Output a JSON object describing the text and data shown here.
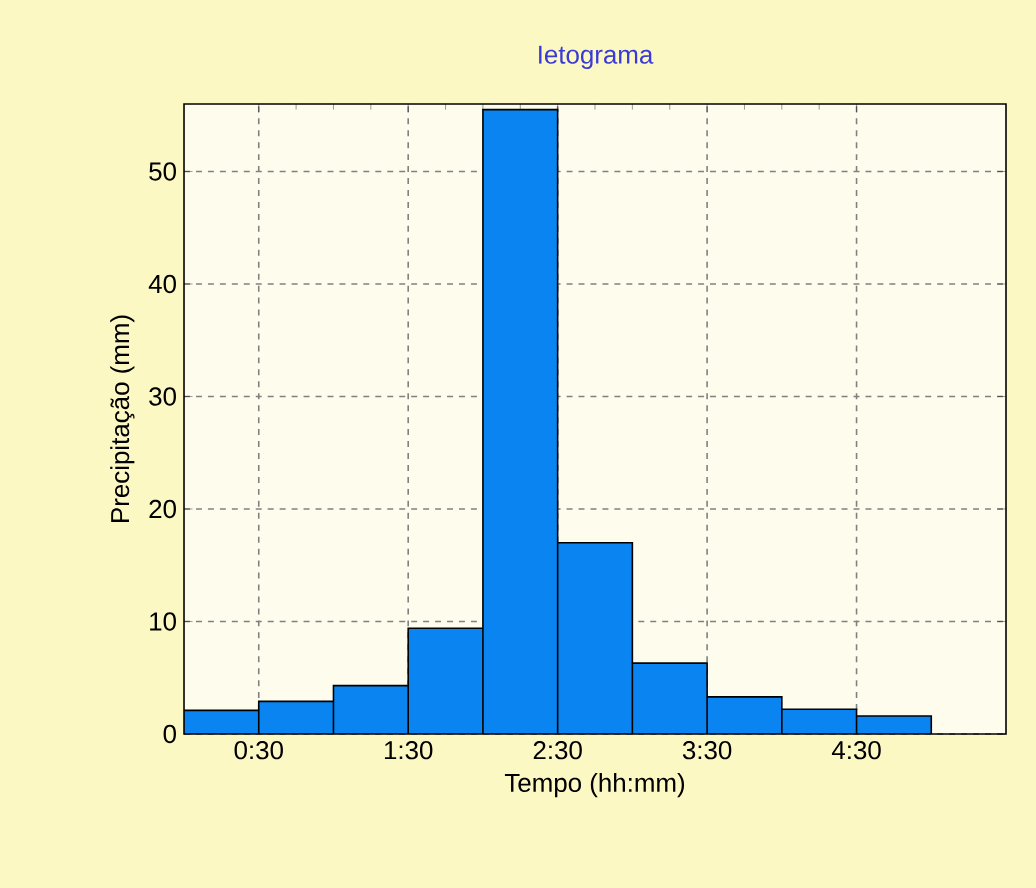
{
  "chart_data": {
    "type": "histogram",
    "title": "Ietograma",
    "xlabel": "Tempo (hh:mm)",
    "ylabel": "Precipitação (mm)",
    "bins": [
      0,
      0.5,
      1,
      1.5,
      2,
      2.5,
      3,
      3.5,
      4,
      4.5,
      5
    ],
    "values": [
      2.1,
      2.9,
      4.3,
      9.4,
      55.5,
      17.0,
      6.3,
      3.3,
      2.2,
      1.6
    ],
    "color": "#0a84f0",
    "xlim": [
      0,
      5.5
    ],
    "ylim": [
      0,
      56
    ],
    "xticks": [
      {
        "value": 0.5,
        "label": "0:30"
      },
      {
        "value": 1.5,
        "label": "1:30"
      },
      {
        "value": 2.5,
        "label": "2:30"
      },
      {
        "value": 3.5,
        "label": "3:30"
      },
      {
        "value": 4.5,
        "label": "4:30"
      }
    ],
    "yticks": [
      0,
      10,
      20,
      30,
      40,
      50
    ],
    "grid": true
  }
}
